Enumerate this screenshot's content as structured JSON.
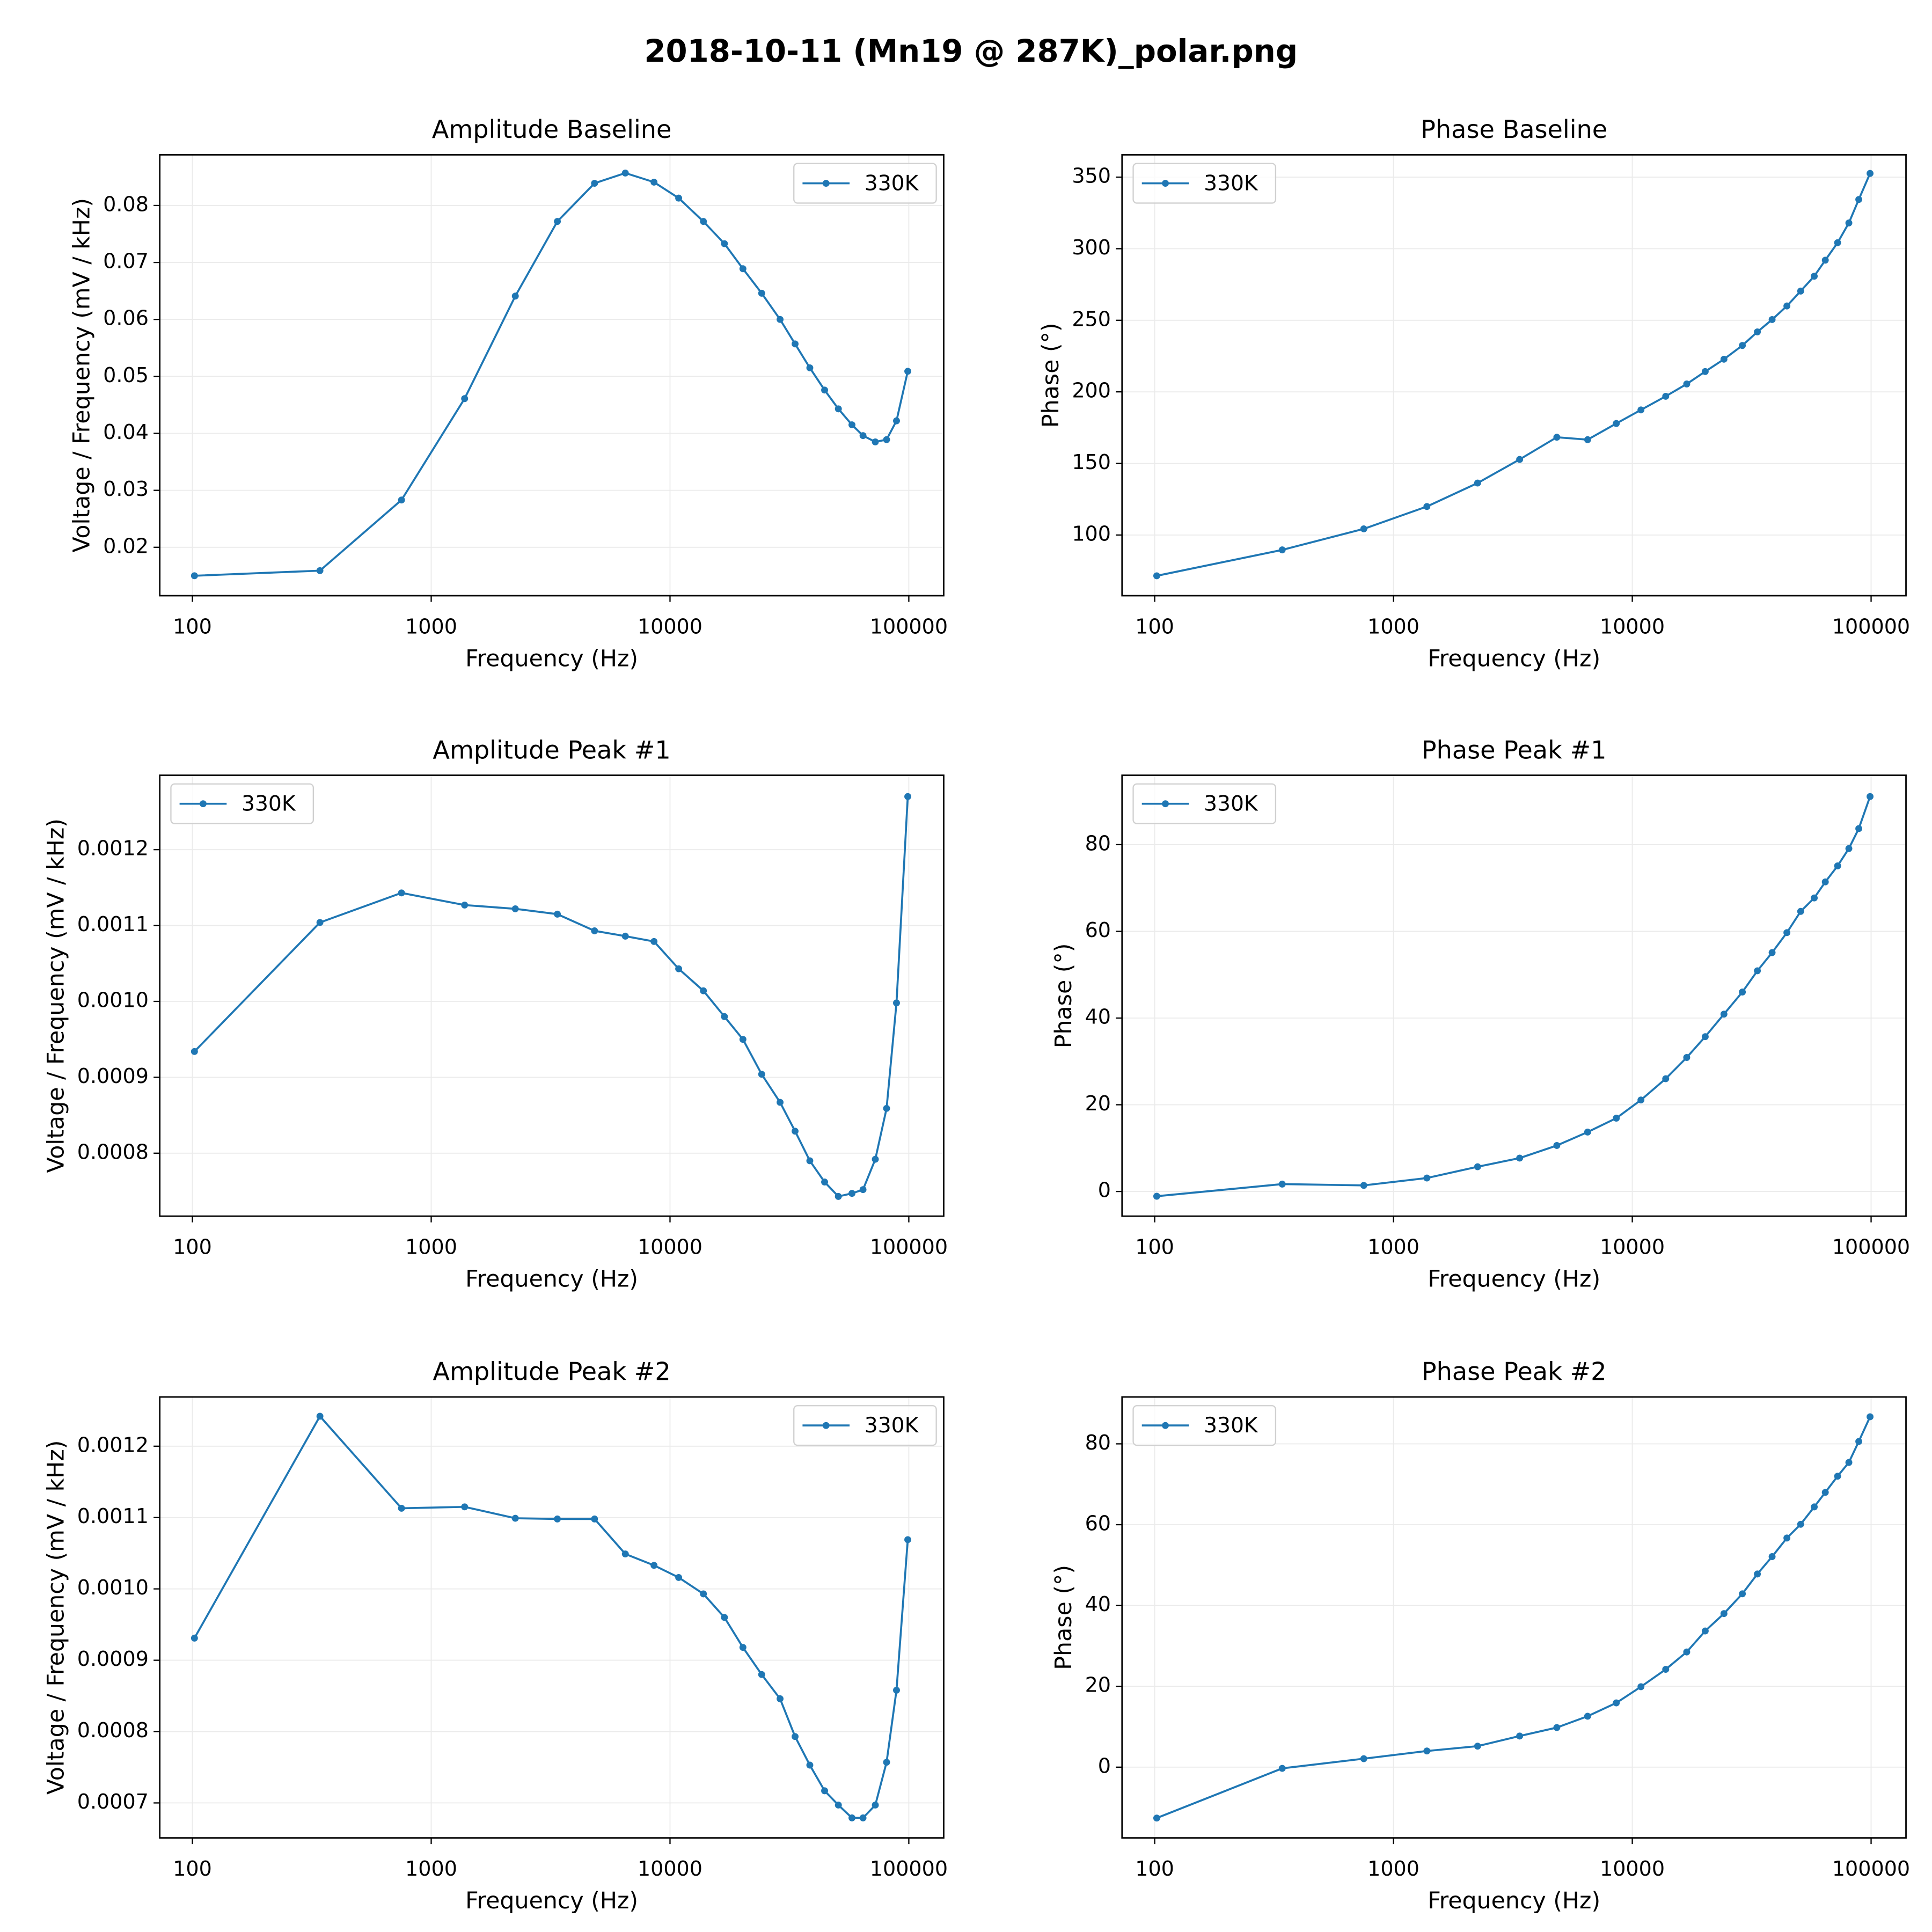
{
  "title": "2018-10-11 (Mn19 @ 287K)_polar.png",
  "chart_data": [
    {
      "type": "line",
      "title": "Amplitude Baseline",
      "xlabel": "Frequency (Hz)",
      "ylabel": "Voltage / Frequency (mV / kHz)",
      "xscale": "log",
      "xlim": [
        73,
        140000
      ],
      "xticks": [
        100,
        1000,
        10000,
        100000
      ],
      "ylim": [
        0.0115,
        0.0889
      ],
      "yticks": [
        0.02,
        0.03,
        0.04,
        0.05,
        0.06,
        0.07,
        0.08
      ],
      "grid": true,
      "legend": "upper right",
      "x": [
        102,
        342,
        751,
        1380,
        2250,
        3375,
        4830,
        6500,
        8570,
        10870,
        13800,
        16900,
        20200,
        24200,
        28900,
        33400,
        38500,
        44400,
        50700,
        57800,
        64300,
        72400,
        80700,
        88800,
        99000
      ],
      "series": [
        {
          "name": "330K",
          "color": "#1f77b4",
          "values": [
            0.015,
            0.0159,
            0.0283,
            0.0461,
            0.0641,
            0.0772,
            0.0839,
            0.0857,
            0.0841,
            0.0813,
            0.0772,
            0.0733,
            0.0689,
            0.0646,
            0.06,
            0.0557,
            0.0515,
            0.0476,
            0.0443,
            0.0415,
            0.0396,
            0.0385,
            0.0389,
            0.0422,
            0.0509
          ]
        }
      ]
    },
    {
      "type": "line",
      "title": "Phase Baseline",
      "xlabel": "Frequency (Hz)",
      "ylabel": "Phase (°)",
      "xscale": "log",
      "xlim": [
        73,
        140000
      ],
      "xticks": [
        100,
        1000,
        10000,
        100000
      ],
      "ylim": [
        57.6,
        365.6
      ],
      "yticks": [
        100,
        150,
        200,
        250,
        300,
        350
      ],
      "grid": true,
      "legend": "upper left",
      "x": [
        102,
        342,
        751,
        1380,
        2250,
        3375,
        4830,
        6500,
        8570,
        10870,
        13800,
        16900,
        20200,
        24200,
        28900,
        33400,
        38500,
        44400,
        50700,
        57800,
        64300,
        72400,
        80700,
        88800,
        99000
      ],
      "series": [
        {
          "name": "330K",
          "color": "#1f77b4",
          "values": [
            71.5,
            89.6,
            104.3,
            119.9,
            136.3,
            152.8,
            168.3,
            166.6,
            177.9,
            187.4,
            196.9,
            205.5,
            214.2,
            222.8,
            232.4,
            241.9,
            250.5,
            260,
            270.4,
            280.8,
            292,
            304.2,
            318,
            334.4,
            352.6
          ]
        }
      ]
    },
    {
      "type": "line",
      "title": "Amplitude Peak #1",
      "xlabel": "Frequency (Hz)",
      "ylabel": "Voltage / Frequency (mV / kHz)",
      "xscale": "log",
      "xlim": [
        73,
        140000
      ],
      "xticks": [
        100,
        1000,
        10000,
        100000
      ],
      "ylim": [
        0.000717,
        0.001298
      ],
      "yticks": [
        0.0008,
        0.0009,
        {
          "value": 0.001,
          "label": "0.0010"
        },
        0.0011,
        0.0012
      ],
      "grid": true,
      "legend": "upper left",
      "x": [
        102,
        342,
        751,
        1380,
        2250,
        3375,
        4830,
        6500,
        8570,
        10870,
        13800,
        16900,
        20200,
        24200,
        28900,
        33400,
        38500,
        44400,
        50700,
        57800,
        64300,
        72400,
        80700,
        88800,
        99000
      ],
      "series": [
        {
          "name": "330K",
          "color": "#1f77b4",
          "values": [
            0.000934,
            0.001104,
            0.001143,
            0.001127,
            0.001122,
            0.001115,
            0.001093,
            0.001086,
            0.001079,
            0.001043,
            0.001014,
            0.00098,
            0.00095,
            0.000904,
            0.000867,
            0.000829,
            0.00079,
            0.000762,
            0.000743,
            0.000747,
            0.000752,
            0.000792,
            0.000859,
            0.000998,
            0.00127
          ]
        }
      ]
    },
    {
      "type": "line",
      "title": "Phase Peak #1",
      "xlabel": "Frequency (Hz)",
      "ylabel": "Phase (°)",
      "xscale": "log",
      "xlim": [
        73,
        140000
      ],
      "xticks": [
        100,
        1000,
        10000,
        100000
      ],
      "ylim": [
        -5.7,
        96
      ],
      "yticks": [
        0,
        20,
        40,
        60,
        80
      ],
      "grid": true,
      "legend": "upper left",
      "x": [
        102,
        342,
        751,
        1380,
        2250,
        3375,
        4830,
        6500,
        8570,
        10870,
        13800,
        16900,
        20200,
        24200,
        28900,
        33400,
        38500,
        44400,
        50700,
        57800,
        64300,
        72400,
        80700,
        88800,
        99000
      ],
      "series": [
        {
          "name": "330K",
          "color": "#1f77b4",
          "values": [
            -1.1,
            1.7,
            1.4,
            3.1,
            5.7,
            7.7,
            10.6,
            13.7,
            16.9,
            21.1,
            26,
            30.9,
            35.7,
            40.9,
            46,
            50.9,
            55.1,
            59.7,
            64.6,
            67.7,
            71.4,
            75.1,
            79.1,
            83.7,
            91.1
          ]
        }
      ]
    },
    {
      "type": "line",
      "title": "Amplitude Peak #2",
      "xlabel": "Frequency (Hz)",
      "ylabel": "Voltage / Frequency (mV / kHz)",
      "xscale": "log",
      "xlim": [
        73,
        140000
      ],
      "xticks": [
        100,
        1000,
        10000,
        100000
      ],
      "ylim": [
        0.000651,
        0.001269
      ],
      "yticks": [
        0.0007,
        0.0008,
        0.0009,
        {
          "value": 0.001,
          "label": "0.0010"
        },
        0.0011,
        0.0012
      ],
      "grid": true,
      "legend": "upper right",
      "x": [
        102,
        342,
        751,
        1380,
        2250,
        3375,
        4830,
        6500,
        8570,
        10870,
        13800,
        16900,
        20200,
        24200,
        28900,
        33400,
        38500,
        44400,
        50700,
        57800,
        64300,
        72400,
        80700,
        88800,
        99000
      ],
      "series": [
        {
          "name": "330K",
          "color": "#1f77b4",
          "values": [
            0.000931,
            0.001242,
            0.001113,
            0.001115,
            0.001099,
            0.001098,
            0.001098,
            0.001049,
            0.001033,
            0.001016,
            0.000993,
            0.00096,
            0.000918,
            0.00088,
            0.000846,
            0.000793,
            0.000753,
            0.000717,
            0.000697,
            0.000679,
            0.000679,
            0.000697,
            0.000757,
            0.000858,
            0.001069
          ]
        }
      ]
    },
    {
      "type": "line",
      "title": "Phase Peak #2",
      "xlabel": "Frequency (Hz)",
      "ylabel": "Phase (°)",
      "xscale": "log",
      "xlim": [
        73,
        140000
      ],
      "xticks": [
        100,
        1000,
        10000,
        100000
      ],
      "ylim": [
        -17.5,
        91.6
      ],
      "yticks": [
        0,
        20,
        40,
        60,
        80
      ],
      "grid": true,
      "legend": "upper left",
      "x": [
        102,
        342,
        751,
        1380,
        2250,
        3375,
        4830,
        6500,
        8570,
        10870,
        13800,
        16900,
        20200,
        24200,
        28900,
        33400,
        38500,
        44400,
        50700,
        57800,
        64300,
        72400,
        80700,
        88800,
        99000
      ],
      "series": [
        {
          "name": "330K",
          "color": "#1f77b4",
          "values": [
            -12.6,
            -0.3,
            2.1,
            4,
            5.2,
            7.7,
            9.8,
            12.6,
            15.9,
            19.9,
            24.2,
            28.5,
            33.7,
            38,
            42.9,
            47.8,
            52.1,
            56.7,
            60.1,
            64.4,
            68,
            72,
            75.4,
            80.6,
            86.7
          ]
        }
      ]
    }
  ]
}
